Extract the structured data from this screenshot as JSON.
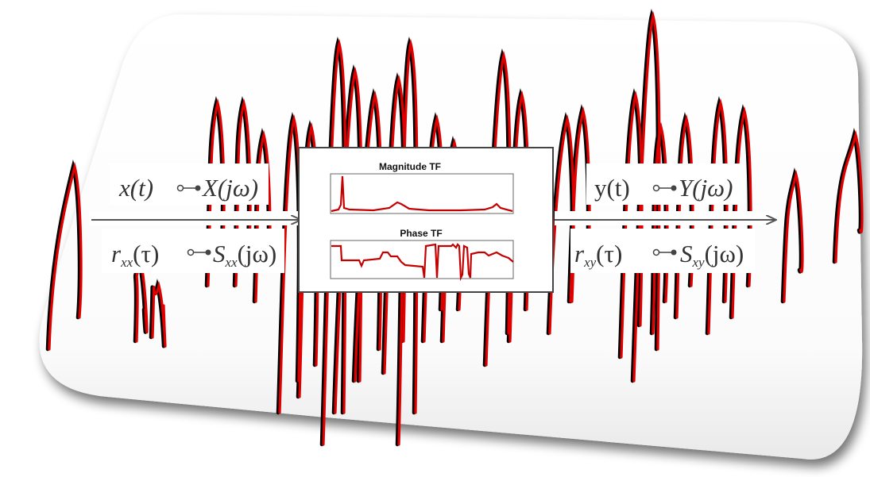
{
  "input": {
    "signal_pair": {
      "time": "x(t)",
      "freq": "X(jω)"
    },
    "correlation_pair": {
      "time": "r",
      "time_sub": "xx",
      "time_arg": "(τ)",
      "freq": "S",
      "freq_sub": "xx",
      "freq_arg": "(jω)"
    }
  },
  "output": {
    "signal_pair": {
      "time": "y(t)",
      "freq": "Y(jω)"
    },
    "correlation_pair": {
      "time": "r",
      "time_sub": "xy",
      "time_arg": "(τ)",
      "freq": "S",
      "freq_sub": "xy",
      "freq_arg": "(jω)"
    }
  },
  "system": {
    "magnitude_title": "Magnitude TF",
    "phase_title": "Phase TF"
  },
  "colors": {
    "waveform_measured": "#000000",
    "waveform_model": "#e00000",
    "arrow": "#555555",
    "box_border": "#444444"
  }
}
